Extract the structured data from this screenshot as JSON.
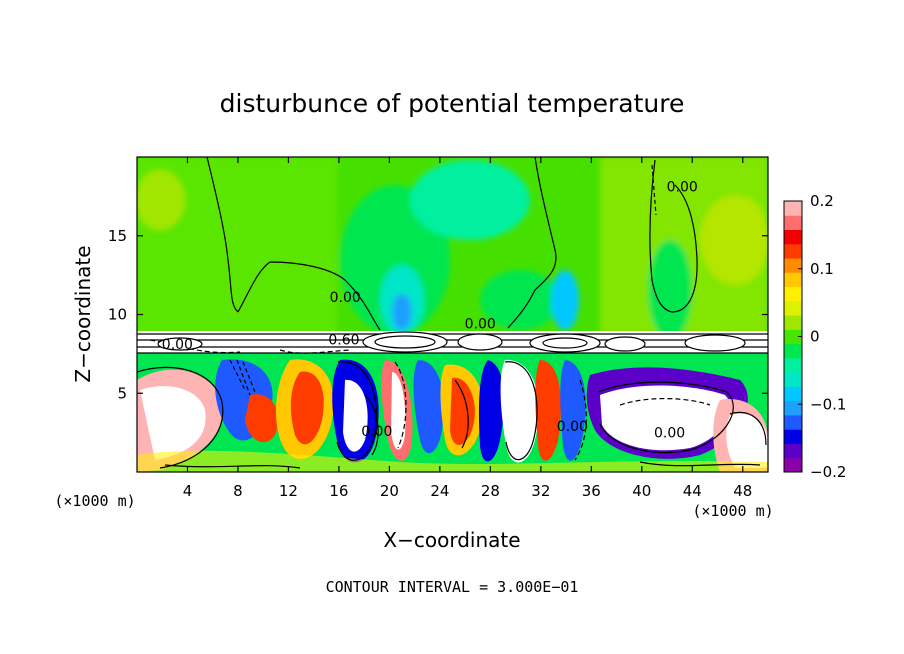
{
  "chart_data": {
    "type": "heatmap",
    "title": "disturbunce of potential temperature",
    "xlabel": "X−coordinate",
    "ylabel": "Z−coordinate",
    "x_unit": "(×1000 m)",
    "x_unit_right": "(×1000 m)",
    "xlim": [
      0,
      50
    ],
    "ylim": [
      0,
      20
    ],
    "x_ticks": [
      4,
      8,
      12,
      16,
      20,
      24,
      28,
      32,
      36,
      40,
      44,
      48
    ],
    "y_ticks": [
      5,
      10,
      15
    ],
    "grid": false,
    "colorbar": {
      "range": [
        -0.2,
        0.2
      ],
      "ticks": [
        {
          "value": 0.2,
          "label": "0.2"
        },
        {
          "value": 0.1,
          "label": "0.1"
        },
        {
          "value": 0,
          "label": "0"
        },
        {
          "value": -0.1,
          "label": "−0.1"
        },
        {
          "value": -0.2,
          "label": "−0.2"
        }
      ],
      "colors": [
        "#8b00a8",
        "#5a00c8",
        "#0000e6",
        "#1e5aff",
        "#1ea0ff",
        "#00c8ff",
        "#00e6c8",
        "#00f0a0",
        "#00e650",
        "#46e600",
        "#a0e600",
        "#dcf000",
        "#fff000",
        "#ffc800",
        "#ff8c00",
        "#ff3c00",
        "#f00000",
        "#ff6e6e",
        "#ffb4b4"
      ]
    },
    "contour_interval_text": "CONTOUR INTERVAL = 3.000E−01",
    "contour_labels": [
      {
        "x": 16.4,
        "y": 8.1,
        "text": "0.60"
      },
      {
        "x": 3.2,
        "y": 7.8,
        "text": "0.00"
      },
      {
        "x": 16.5,
        "y": 10.8,
        "text": "0.00"
      },
      {
        "x": 27.2,
        "y": 9.1,
        "text": "0.00"
      },
      {
        "x": 43.2,
        "y": 17.8,
        "text": "0.00"
      },
      {
        "x": 19.0,
        "y": 2.3,
        "text": "0.00"
      },
      {
        "x": 34.5,
        "y": 2.6,
        "text": "0.00"
      },
      {
        "x": 42.2,
        "y": 2.2,
        "text": "0.00"
      }
    ]
  }
}
